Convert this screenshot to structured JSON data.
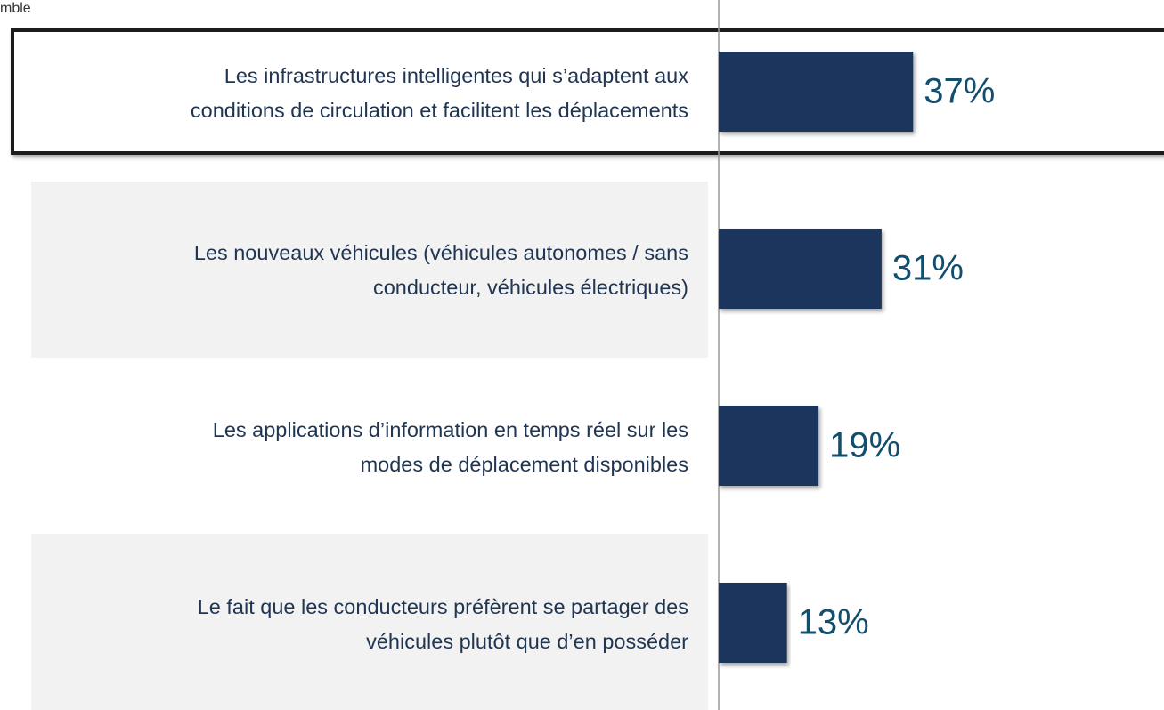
{
  "chart_data": {
    "type": "bar",
    "subtitle": "mble",
    "categories": [
      [
        "Les infrastructures intelligentes qui s’adaptent aux",
        "conditions de circulation et facilitent les déplacements"
      ],
      [
        "Les nouveaux véhicules (véhicules autonomes / sans",
        "conducteur, véhicules électriques)"
      ],
      [
        "Les applications d’information en temps réel sur les",
        "modes de déplacement disponibles"
      ],
      [
        "Le fait que les conducteurs préfèrent se partager des",
        "véhicules plutôt que d’en posséder"
      ]
    ],
    "values": [
      37,
      31,
      19,
      13
    ],
    "value_labels": [
      "37%",
      "31%",
      "19%",
      "13%"
    ],
    "color": "#1b365d",
    "highlight": 0
  }
}
